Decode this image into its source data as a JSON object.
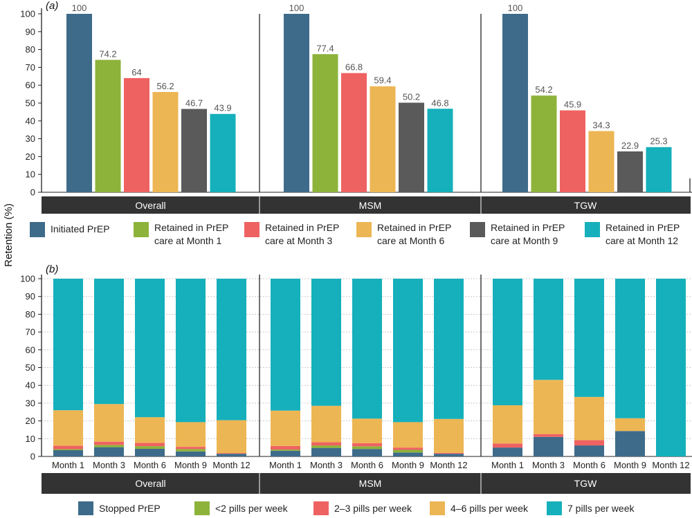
{
  "figure": {
    "ylabel": "Retention (%)"
  },
  "chart_data": [
    {
      "panel": "(a)",
      "type": "bar",
      "ylim": [
        0,
        100
      ],
      "yticks": [
        0,
        10,
        20,
        30,
        40,
        50,
        60,
        70,
        80,
        90,
        100
      ],
      "groups": [
        "Overall",
        "MSM",
        "TGW"
      ],
      "series": [
        {
          "name": "Initiated PrEP",
          "color": "#3e6b8a",
          "values": [
            100,
            100,
            100
          ]
        },
        {
          "name": "Retained in PrEP care at Month 1",
          "legend_lines": [
            "Retained in PrEP",
            "care at Month 1"
          ],
          "color": "#8db33a",
          "values": [
            74.2,
            77.4,
            54.2
          ]
        },
        {
          "name": "Retained in PrEP care at Month 3",
          "legend_lines": [
            "Retained in PrEP",
            "care at Month 3"
          ],
          "color": "#ef6262",
          "values": [
            64,
            66.8,
            45.9
          ]
        },
        {
          "name": "Retained in PrEP care at Month 6",
          "legend_lines": [
            "Retained in PrEP",
            "care at Month 6"
          ],
          "color": "#edb654",
          "values": [
            56.2,
            59.4,
            34.3
          ]
        },
        {
          "name": "Retained in PrEP care at Month 9",
          "legend_lines": [
            "Retained in PrEP",
            "care at Month 9"
          ],
          "color": "#5a5a5a",
          "values": [
            46.7,
            50.2,
            22.9
          ]
        },
        {
          "name": "Retained in PrEP care at Month 12",
          "legend_lines": [
            "Retained in PrEP",
            "care at Month 12"
          ],
          "color": "#15b0bb",
          "values": [
            43.9,
            46.8,
            25.3
          ]
        }
      ],
      "value_labels": [
        [
          "100",
          "74.2",
          "64",
          "56.2",
          "46.7",
          "43.9"
        ],
        [
          "100",
          "77.4",
          "66.8",
          "59.4",
          "50.2",
          "46.8"
        ],
        [
          "100",
          "54.2",
          "45.9",
          "34.3",
          "22.9",
          "25.3"
        ]
      ]
    },
    {
      "panel": "(b)",
      "type": "bar",
      "stacked": true,
      "ylim": [
        0,
        100
      ],
      "yticks": [
        0,
        10,
        20,
        30,
        40,
        50,
        60,
        70,
        80,
        90,
        100
      ],
      "grid": true,
      "groups": [
        "Overall",
        "MSM",
        "TGW"
      ],
      "categories": [
        "Month 1",
        "Month 3",
        "Month 6",
        "Month 9",
        "Month 12"
      ],
      "series": [
        {
          "name": "Stopped PrEP",
          "color": "#3e6b8a",
          "values": [
            [
              3.5,
              5.2,
              4.3,
              2.8,
              1.5
            ],
            [
              3.2,
              4.8,
              4.2,
              2.2,
              1.5
            ],
            [
              5,
              11,
              6.2,
              14.3,
              0
            ]
          ]
        },
        {
          "name": "<2 pills per week",
          "color": "#8db33a",
          "values": [
            [
              0.6,
              1.3,
              1.5,
              1.4,
              0
            ],
            [
              0.7,
              1.4,
              1.5,
              1.5,
              0
            ],
            [
              0,
              0,
              0,
              0,
              0
            ]
          ]
        },
        {
          "name": "2–3 pills per week",
          "color": "#ef6262",
          "values": [
            [
              1.9,
              1.8,
              1.8,
              1.2,
              0.4
            ],
            [
              2,
              1.8,
              1.8,
              1.3,
              0.5
            ],
            [
              2.3,
              1.6,
              3,
              0,
              0
            ]
          ]
        },
        {
          "name": "4–6 pills per week",
          "color": "#edb654",
          "values": [
            [
              20,
              21.2,
              14.5,
              13.9,
              18.5
            ],
            [
              19.9,
              20.5,
              13.8,
              14.3,
              19.1
            ],
            [
              21.5,
              30.5,
              24.3,
              7.2,
              0
            ]
          ]
        },
        {
          "name": "7 pills per week",
          "color": "#15b0bb",
          "values": [
            [
              74,
              70.5,
              77.9,
              80.7,
              79.6
            ],
            [
              74.2,
              71.5,
              78.7,
              80.7,
              78.9
            ],
            [
              71.2,
              56.9,
              66.5,
              78.5,
              100
            ]
          ]
        }
      ]
    }
  ]
}
